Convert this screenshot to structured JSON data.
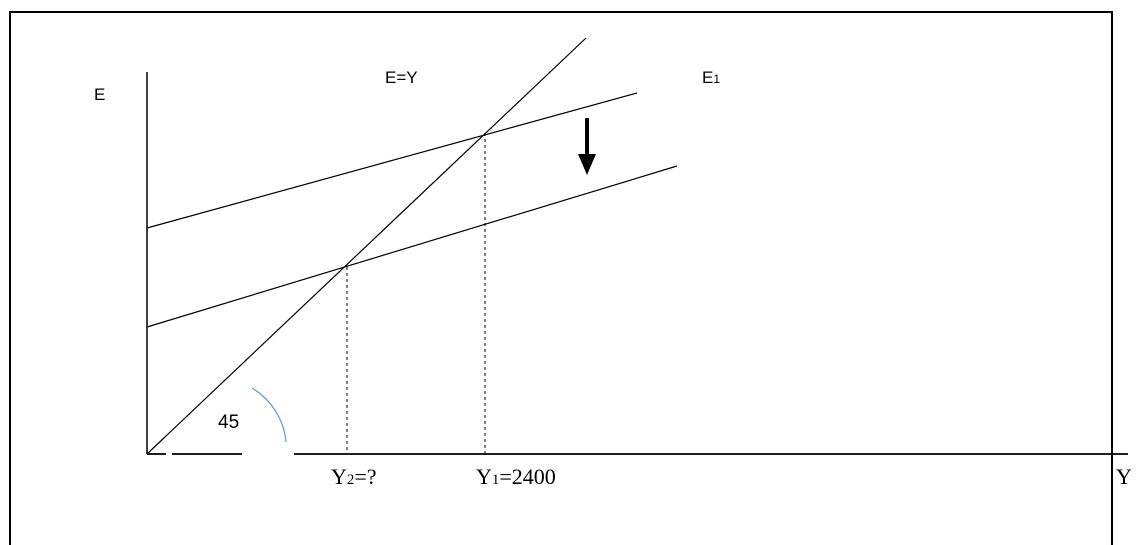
{
  "labels": {
    "e_axis": "E",
    "y_axis": "Y",
    "line_45": "E=Y",
    "e1_prefix": "E",
    "e1_sub": "1",
    "angle": "45",
    "y2_prefix": "Y",
    "y2_sub": "2",
    "y2_suffix": "=?",
    "y1_prefix": "Y",
    "y1_sub": "1",
    "y1_suffix": "=2400"
  },
  "colors": {
    "line": "#000000",
    "angle_arc": "#5b9bd5",
    "background": "#ffffff"
  },
  "arrow": {
    "direction": "down",
    "meaning": "shift of expenditure line E1 downward"
  }
}
